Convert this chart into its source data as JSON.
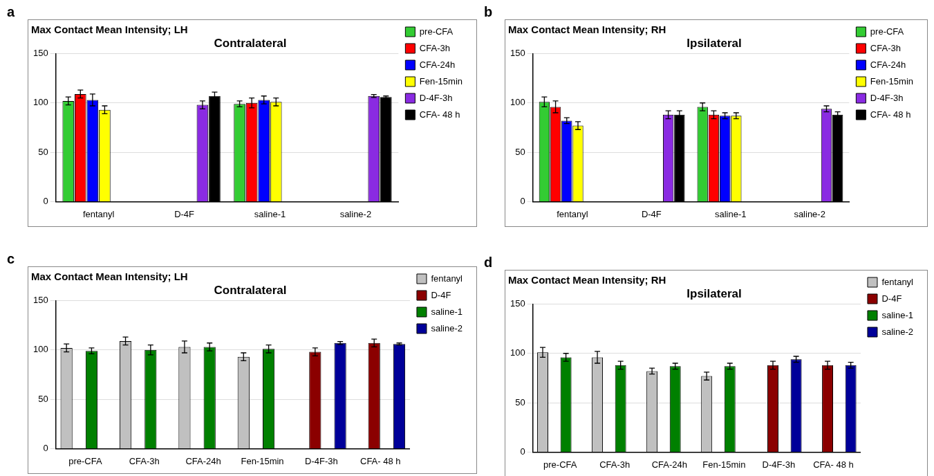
{
  "chart_data": [
    {
      "type": "bar",
      "title": "Max Contact Mean Intensity; LH",
      "subtitle": "Contralateral",
      "annotations": [
        "a"
      ],
      "categories": [
        "fentanyl",
        "D-4F",
        "saline-1",
        "saline-2"
      ],
      "ylim": [
        0,
        150
      ],
      "yticks": [
        0,
        50,
        100,
        150
      ],
      "grid": "y",
      "legend": "right",
      "series": [
        {
          "name": "pre-CFA",
          "color": "#33cc33",
          "values": [
            102,
            null,
            99,
            null
          ],
          "errors": [
            4,
            null,
            3,
            null
          ]
        },
        {
          "name": "CFA-3h",
          "color": "#ff0000",
          "values": [
            109,
            null,
            100,
            null
          ],
          "errors": [
            4,
            null,
            5,
            null
          ]
        },
        {
          "name": "CFA-24h",
          "color": "#0000ff",
          "values": [
            103,
            null,
            103,
            null
          ],
          "errors": [
            6,
            null,
            4,
            null
          ]
        },
        {
          "name": "Fen-15min",
          "color": "#ffff00",
          "values": [
            93,
            null,
            101,
            null
          ],
          "errors": [
            4,
            null,
            4,
            null
          ]
        },
        {
          "name": "D-4F-3h",
          "color": "#8a2be2",
          "values": [
            null,
            98,
            null,
            107
          ],
          "errors": [
            null,
            4,
            null,
            1.5
          ]
        },
        {
          "name": "CFA- 48 h",
          "color": "#000000",
          "values": [
            null,
            107,
            null,
            106
          ],
          "errors": [
            null,
            4,
            null,
            1
          ]
        }
      ]
    },
    {
      "type": "bar",
      "title": "Max Contact Mean Intensity; RH",
      "subtitle": "Ipsilateral",
      "annotations": [
        "b"
      ],
      "categories": [
        "fentanyl",
        "D-4F",
        "saline-1",
        "saline-2"
      ],
      "ylim": [
        0,
        150
      ],
      "yticks": [
        0,
        50,
        100,
        150
      ],
      "grid": "y",
      "legend": "right",
      "series": [
        {
          "name": "pre-CFA",
          "color": "#33cc33",
          "values": [
            101,
            null,
            96,
            null
          ],
          "errors": [
            5,
            null,
            4,
            null
          ]
        },
        {
          "name": "CFA-3h",
          "color": "#ff0000",
          "values": [
            96,
            null,
            88,
            null
          ],
          "errors": [
            6,
            null,
            4,
            null
          ]
        },
        {
          "name": "CFA-24h",
          "color": "#0000ff",
          "values": [
            82,
            null,
            87,
            null
          ],
          "errors": [
            3,
            null,
            3,
            null
          ]
        },
        {
          "name": "Fen-15min",
          "color": "#ffff00",
          "values": [
            77,
            null,
            87,
            null
          ],
          "errors": [
            4,
            null,
            3,
            null
          ]
        },
        {
          "name": "D-4F-3h",
          "color": "#8a2be2",
          "values": [
            null,
            88,
            null,
            94
          ],
          "errors": [
            null,
            4,
            null,
            3
          ]
        },
        {
          "name": "CFA- 48 h",
          "color": "#000000",
          "values": [
            null,
            88,
            null,
            88
          ],
          "errors": [
            null,
            4,
            null,
            3
          ]
        }
      ]
    },
    {
      "type": "bar",
      "title": "Max Contact Mean Intensity; LH",
      "subtitle": "Contralateral",
      "annotations": [
        "c"
      ],
      "categories": [
        "pre-CFA",
        "CFA-3h",
        "CFA-24h",
        "Fen-15min",
        "D-4F-3h",
        "CFA- 48 h"
      ],
      "ylim": [
        0,
        150
      ],
      "yticks": [
        0,
        50,
        100,
        150
      ],
      "grid": "y",
      "legend": "right",
      "series": [
        {
          "name": "fentanyl",
          "color": "#c0c0c0",
          "values": [
            102,
            109,
            103,
            93,
            null,
            null
          ],
          "errors": [
            4,
            4,
            6,
            4,
            null,
            null
          ]
        },
        {
          "name": "D-4F",
          "color": "#8b0000",
          "values": [
            null,
            null,
            null,
            null,
            98,
            107
          ],
          "errors": [
            null,
            null,
            null,
            null,
            4,
            4
          ]
        },
        {
          "name": "saline-1",
          "color": "#008000",
          "values": [
            99,
            100,
            103,
            101,
            null,
            null
          ],
          "errors": [
            3,
            5,
            4,
            4,
            null,
            null
          ]
        },
        {
          "name": "saline-2",
          "color": "#000099",
          "values": [
            null,
            null,
            null,
            null,
            107,
            106
          ],
          "errors": [
            null,
            null,
            null,
            null,
            1.5,
            1
          ]
        }
      ]
    },
    {
      "type": "bar",
      "title": "Max Contact Mean Intensity; RH",
      "subtitle": "Ipsilateral",
      "annotations": [
        "d"
      ],
      "categories": [
        "pre-CFA",
        "CFA-3h",
        "CFA-24h",
        "Fen-15min",
        "D-4F-3h",
        "CFA- 48 h"
      ],
      "ylim": [
        0,
        150
      ],
      "yticks": [
        0,
        50,
        100,
        150
      ],
      "grid": "y",
      "legend": "right",
      "series": [
        {
          "name": "fentanyl",
          "color": "#c0c0c0",
          "values": [
            101,
            96,
            82,
            77,
            null,
            null
          ],
          "errors": [
            5,
            6,
            3,
            4,
            null,
            null
          ]
        },
        {
          "name": "D-4F",
          "color": "#8b0000",
          "values": [
            null,
            null,
            null,
            null,
            88,
            88
          ],
          "errors": [
            null,
            null,
            null,
            null,
            4,
            4
          ]
        },
        {
          "name": "saline-1",
          "color": "#008000",
          "values": [
            96,
            88,
            87,
            87,
            null,
            null
          ],
          "errors": [
            4,
            4,
            3,
            3,
            null,
            null
          ]
        },
        {
          "name": "saline-2",
          "color": "#000099",
          "values": [
            null,
            null,
            null,
            null,
            94,
            88
          ],
          "errors": [
            null,
            null,
            null,
            null,
            3,
            3
          ]
        }
      ]
    }
  ]
}
